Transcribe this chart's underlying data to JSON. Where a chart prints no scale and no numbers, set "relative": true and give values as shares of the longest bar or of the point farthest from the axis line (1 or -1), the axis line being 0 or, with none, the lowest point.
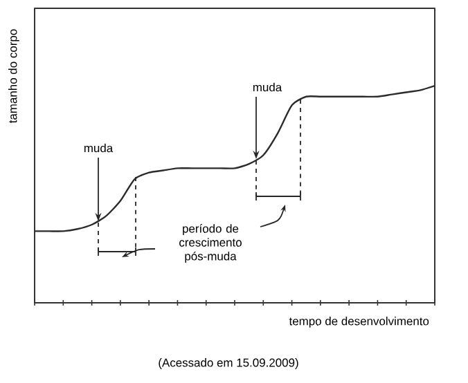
{
  "chart_data": {
    "type": "line",
    "relative": true,
    "xlabel": "tempo de desenvolvimento",
    "ylabel": "tamanho do corpo",
    "categories": [
      null,
      null,
      null,
      null,
      null,
      null,
      null,
      null,
      null,
      null,
      null,
      null,
      null,
      null,
      null,
      null,
      null,
      null,
      null,
      null,
      null,
      null,
      null,
      null,
      null,
      null,
      null,
      null,
      null
    ],
    "series": [
      {
        "color": "#2b2b2b",
        "values": [
          0.33,
          0.33,
          0.33,
          0.34,
          0.36,
          0.4,
          0.47,
          0.57,
          0.6,
          0.61,
          0.62,
          0.62,
          0.62,
          0.62,
          0.62,
          0.64,
          0.68,
          0.78,
          0.91,
          0.95,
          0.95,
          0.95,
          0.95,
          0.95,
          0.95,
          0.96,
          0.97,
          0.98,
          1
        ]
      }
    ],
    "annotations": [
      "muda",
      "muda",
      "período de crescimento pós-muda",
      "(Acessado em 15.09.2009)"
    ]
  }
}
